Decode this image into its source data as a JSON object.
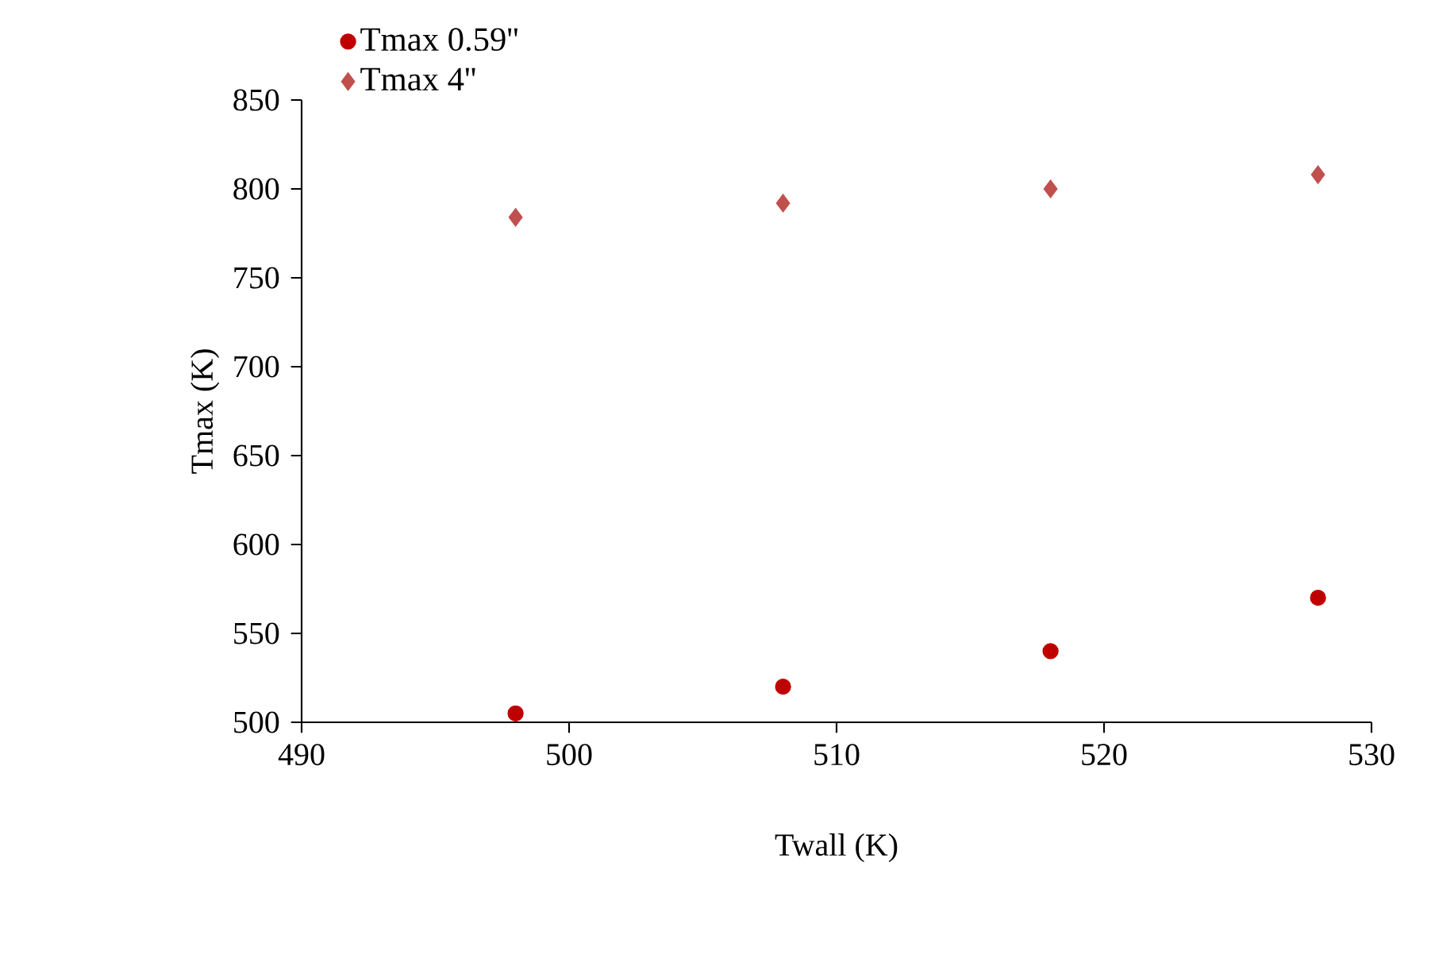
{
  "chart_data": {
    "type": "scatter",
    "xlabel": "Twall (K)",
    "ylabel": "Tmax (K)",
    "xlim": [
      490,
      530
    ],
    "xticks": [
      490,
      500,
      510,
      520,
      530
    ],
    "ylim": [
      500,
      850
    ],
    "yticks": [
      500,
      550,
      600,
      650,
      700,
      750,
      800,
      850
    ],
    "legend": "top left",
    "grid": false,
    "series": [
      {
        "name": "Tmax 0.59''",
        "color": "#c00000",
        "marker": "circle",
        "x": [
          498,
          508,
          518,
          528
        ],
        "values": [
          505,
          520,
          540,
          570
        ]
      },
      {
        "name": "Tmax 4''",
        "color": "#c0504d",
        "marker": "diamond",
        "x": [
          498,
          508,
          518,
          528
        ],
        "values": [
          784,
          792,
          800,
          808
        ]
      }
    ]
  }
}
